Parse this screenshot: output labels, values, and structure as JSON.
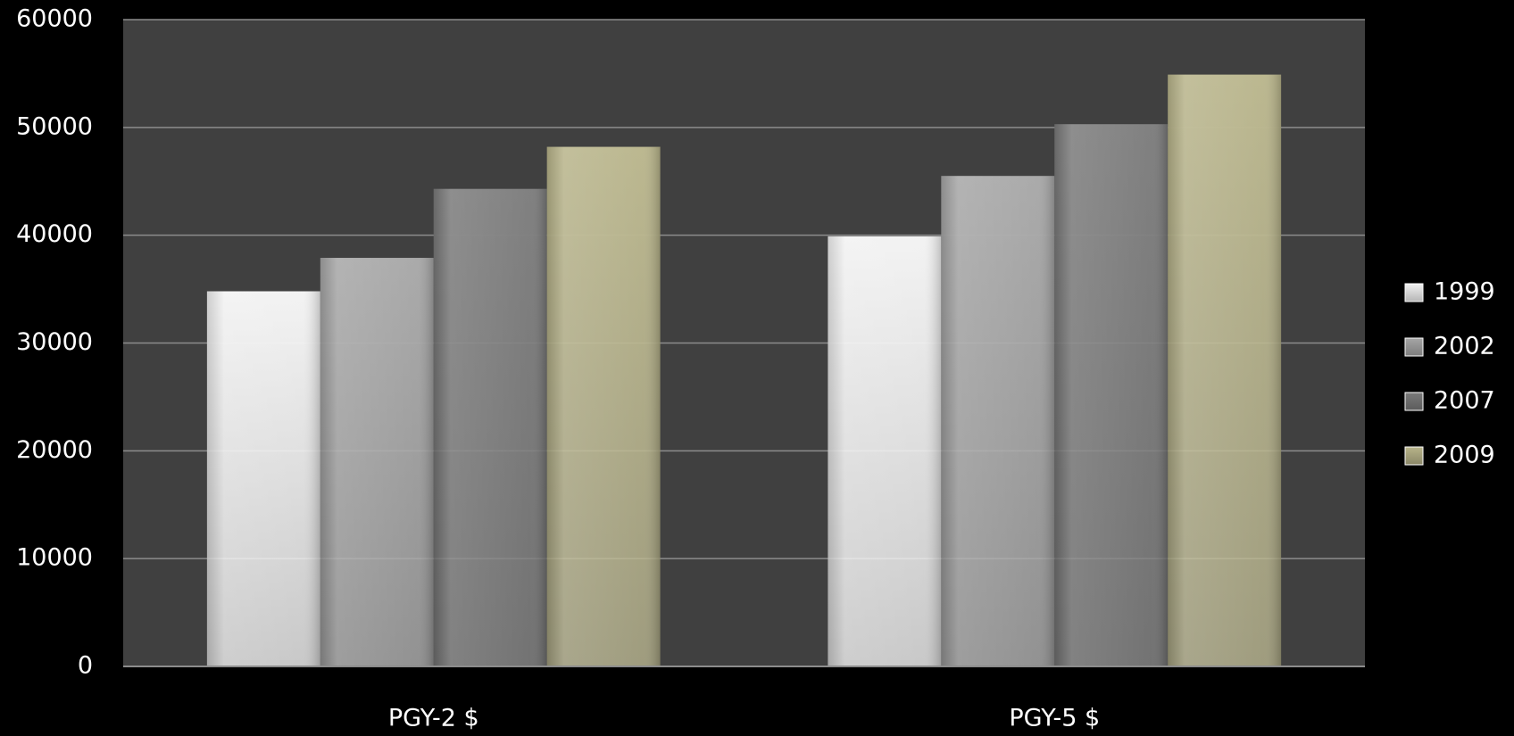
{
  "chart_data": {
    "type": "bar",
    "categories": [
      "PGY-2 $",
      "PGY-5 $"
    ],
    "series": [
      {
        "name": "1999",
        "color": "#f2f2f2",
        "values": [
          34800,
          39900
        ]
      },
      {
        "name": "2002",
        "color": "#a6a6a6",
        "values": [
          37900,
          45500
        ]
      },
      {
        "name": "2007",
        "color": "#7a7a7a",
        "values": [
          44300,
          50300
        ]
      },
      {
        "name": "2009",
        "color": "#b8b48a",
        "values": [
          48200,
          54900
        ]
      }
    ],
    "ylim": [
      0,
      60000
    ],
    "yticks": [
      0,
      10000,
      20000,
      30000,
      40000,
      50000,
      60000
    ],
    "grid": true,
    "legend": "right"
  }
}
